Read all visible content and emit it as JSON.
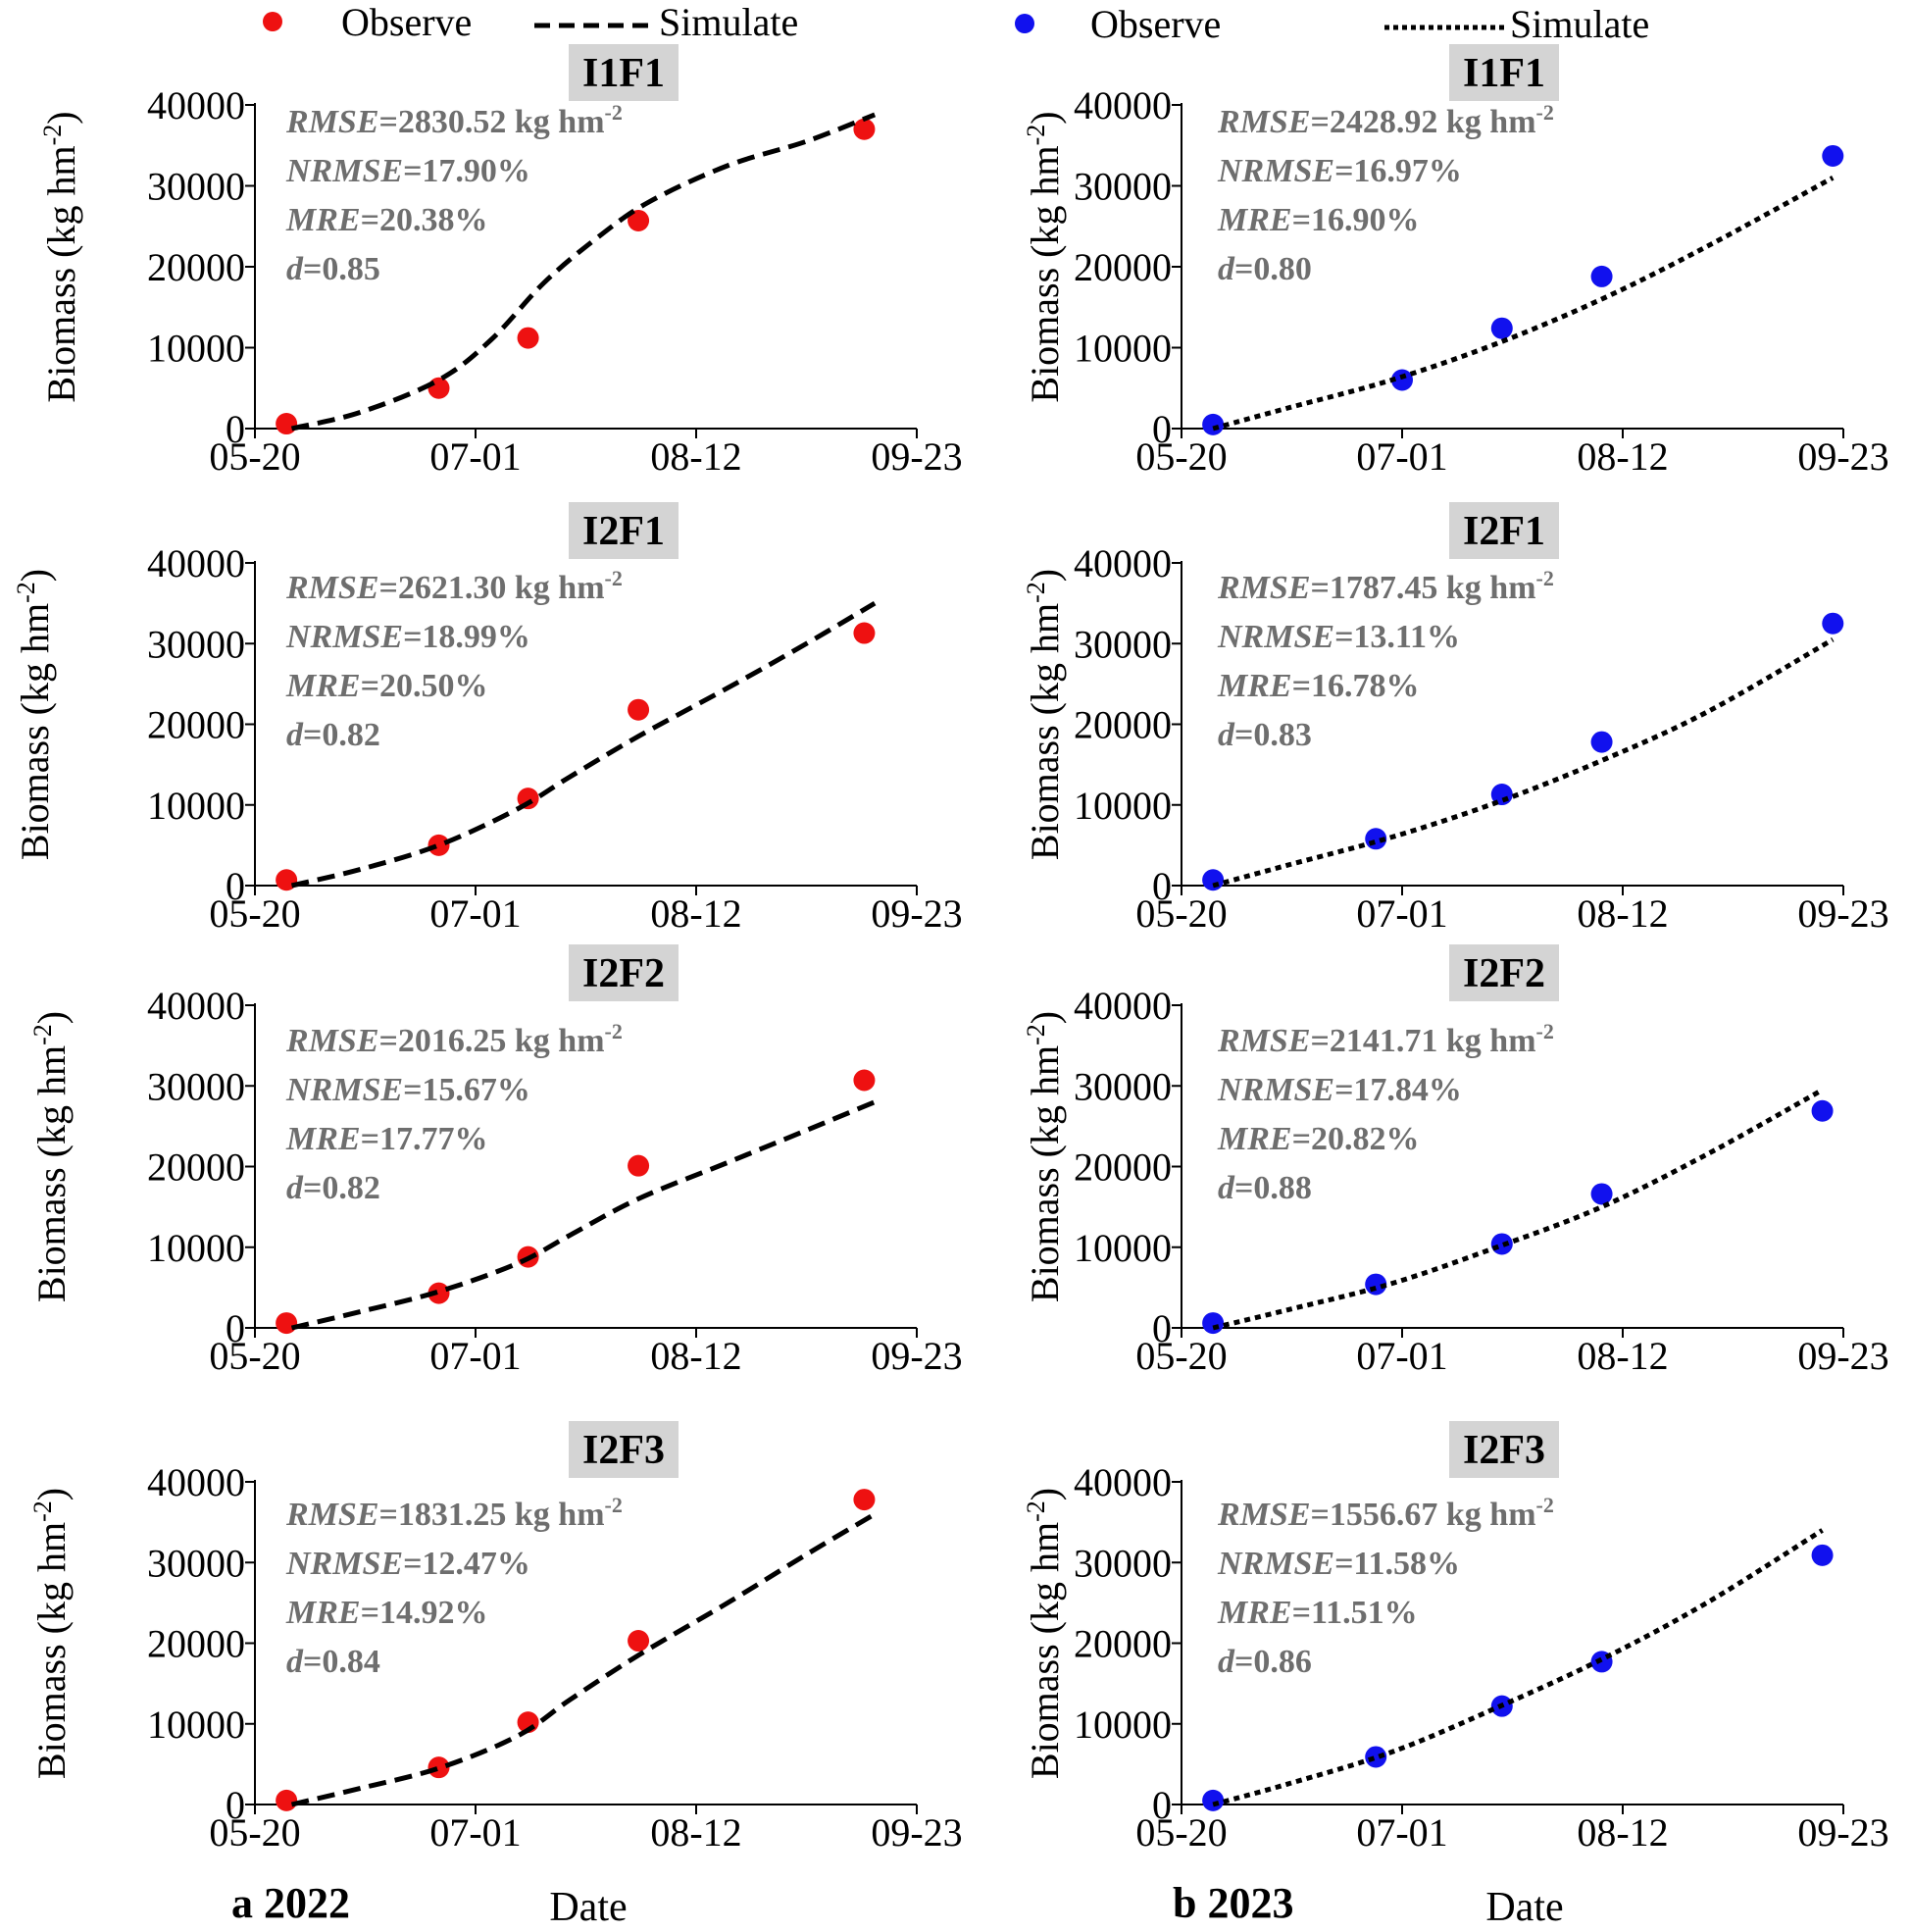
{
  "legend": [
    {
      "label": "Observe",
      "kind": "point",
      "color": "#ee1111"
    },
    {
      "label": "Simulate",
      "kind": "dash",
      "color": "#000000"
    },
    {
      "label": "Observe",
      "kind": "point",
      "color": "#1111ee"
    },
    {
      "label": "Simulate",
      "kind": "dot",
      "color": "#000000"
    }
  ],
  "column_labels": [
    {
      "letter": "a",
      "year": "2022"
    },
    {
      "letter": "b",
      "year": "2023"
    }
  ],
  "xlabel": "Date",
  "ylabel_main": "Biomass (kg hm",
  "ylabel_exp": "-2",
  "ylabel_close": ")",
  "stat_unit": " kg hm",
  "stat_unit_exp": "-2",
  "colors": {
    "observe_2022": "#ee1111",
    "observe_2023": "#1111ee",
    "title_box": "#d4d4d4",
    "stats_text": "#6e6e6e"
  },
  "chart_data": [
    {
      "type": "line",
      "treatment": "I1F1",
      "year": "2022",
      "x_ticks": [
        "05-20",
        "07-01",
        "08-12",
        "09-23"
      ],
      "x_range": [
        0,
        126
      ],
      "y_ticks": [
        0,
        10000,
        20000,
        30000,
        40000
      ],
      "ylim": [
        0,
        40000
      ],
      "series": [
        {
          "name": "Observe",
          "style": "point",
          "x": [
            6,
            35,
            52,
            73,
            116
          ],
          "y": [
            600,
            5000,
            11200,
            25700,
            37000
          ]
        },
        {
          "name": "Simulate",
          "style": "dash",
          "x": [
            7,
            20,
            35,
            45,
            55,
            65,
            75,
            90,
            105,
            118
          ],
          "y": [
            0,
            2000,
            6000,
            11000,
            18000,
            23500,
            28000,
            32500,
            35500,
            38800
          ]
        }
      ],
      "stats": {
        "rmse": "2830.52",
        "nrmse": "17.90%",
        "mre": "20.38%",
        "d": "0.85"
      }
    },
    {
      "type": "line",
      "treatment": "I1F1",
      "year": "2023",
      "x_ticks": [
        "05-20",
        "07-01",
        "08-12",
        "09-23"
      ],
      "x_range": [
        0,
        126
      ],
      "y_ticks": [
        0,
        10000,
        20000,
        30000,
        40000
      ],
      "ylim": [
        0,
        40000
      ],
      "series": [
        {
          "name": "Observe",
          "style": "point",
          "x": [
            6,
            42,
            61,
            80,
            124
          ],
          "y": [
            500,
            6000,
            12400,
            18800,
            33700
          ]
        },
        {
          "name": "Simulate",
          "style": "dot",
          "x": [
            6,
            20,
            40,
            60,
            80,
            100,
            124
          ],
          "y": [
            0,
            2500,
            6000,
            10500,
            16000,
            22500,
            31000
          ]
        }
      ],
      "stats": {
        "rmse": "2428.92",
        "nrmse": "16.97%",
        "mre": "16.90%",
        "d": "0.80"
      }
    },
    {
      "type": "line",
      "treatment": "I2F1",
      "year": "2022",
      "x_ticks": [
        "05-20",
        "07-01",
        "08-12",
        "09-23"
      ],
      "x_range": [
        0,
        126
      ],
      "y_ticks": [
        0,
        10000,
        20000,
        30000,
        40000
      ],
      "ylim": [
        0,
        40000
      ],
      "series": [
        {
          "name": "Observe",
          "style": "point",
          "x": [
            6,
            35,
            52,
            73,
            116
          ],
          "y": [
            700,
            5000,
            10800,
            21800,
            31300
          ]
        },
        {
          "name": "Simulate",
          "style": "dash",
          "x": [
            7,
            20,
            35,
            50,
            60,
            73,
            90,
            105,
            118
          ],
          "y": [
            0,
            2000,
            5000,
            9500,
            13500,
            18500,
            24500,
            30000,
            35000
          ]
        }
      ],
      "stats": {
        "rmse": "2621.30",
        "nrmse": "18.99%",
        "mre": "20.50%",
        "d": "0.82"
      }
    },
    {
      "type": "line",
      "treatment": "I2F1",
      "year": "2023",
      "x_ticks": [
        "05-20",
        "07-01",
        "08-12",
        "09-23"
      ],
      "x_range": [
        0,
        126
      ],
      "y_ticks": [
        0,
        10000,
        20000,
        30000,
        40000
      ],
      "ylim": [
        0,
        40000
      ],
      "series": [
        {
          "name": "Observe",
          "style": "point",
          "x": [
            6,
            37,
            61,
            80,
            124
          ],
          "y": [
            700,
            5800,
            11300,
            17800,
            32500
          ]
        },
        {
          "name": "Simulate",
          "style": "dot",
          "x": [
            6,
            20,
            40,
            60,
            80,
            100,
            124
          ],
          "y": [
            0,
            2500,
            6000,
            10300,
            15500,
            21500,
            30500
          ]
        }
      ],
      "stats": {
        "rmse": "1787.45",
        "nrmse": "13.11%",
        "mre": "16.78%",
        "d": "0.83"
      }
    },
    {
      "type": "line",
      "treatment": "I2F2",
      "year": "2022",
      "x_ticks": [
        "05-20",
        "07-01",
        "08-12",
        "09-23"
      ],
      "x_range": [
        0,
        126
      ],
      "y_ticks": [
        0,
        10000,
        20000,
        30000,
        40000
      ],
      "ylim": [
        0,
        40000
      ],
      "series": [
        {
          "name": "Observe",
          "style": "point",
          "x": [
            6,
            35,
            52,
            73,
            116
          ],
          "y": [
            600,
            4300,
            8800,
            20100,
            30700
          ]
        },
        {
          "name": "Simulate",
          "style": "dash",
          "x": [
            7,
            20,
            35,
            50,
            60,
            73,
            90,
            105,
            118
          ],
          "y": [
            0,
            2000,
            4500,
            8000,
            11500,
            16000,
            20500,
            24500,
            28000
          ]
        }
      ],
      "stats": {
        "rmse": "2016.25",
        "nrmse": "15.67%",
        "mre": "17.77%",
        "d": "0.82"
      }
    },
    {
      "type": "line",
      "treatment": "I2F2",
      "year": "2023",
      "x_ticks": [
        "05-20",
        "07-01",
        "08-12",
        "09-23"
      ],
      "x_range": [
        0,
        126
      ],
      "y_ticks": [
        0,
        10000,
        20000,
        30000,
        40000
      ],
      "ylim": [
        0,
        40000
      ],
      "series": [
        {
          "name": "Observe",
          "style": "point",
          "x": [
            6,
            37,
            61,
            80,
            122
          ],
          "y": [
            600,
            5400,
            10400,
            16600,
            26900
          ]
        },
        {
          "name": "Simulate",
          "style": "dot",
          "x": [
            6,
            20,
            40,
            60,
            80,
            100,
            122
          ],
          "y": [
            0,
            2200,
            5500,
            10000,
            15000,
            21500,
            29500
          ]
        }
      ],
      "stats": {
        "rmse": "2141.71",
        "nrmse": "17.84%",
        "mre": "20.82%",
        "d": "0.88"
      }
    },
    {
      "type": "line",
      "treatment": "I2F3",
      "year": "2022",
      "x_ticks": [
        "05-20",
        "07-01",
        "08-12",
        "09-23"
      ],
      "x_range": [
        0,
        126
      ],
      "y_ticks": [
        0,
        10000,
        20000,
        30000,
        40000
      ],
      "ylim": [
        0,
        40000
      ],
      "series": [
        {
          "name": "Observe",
          "style": "point",
          "x": [
            6,
            35,
            52,
            73,
            116
          ],
          "y": [
            500,
            4600,
            10200,
            20300,
            37800
          ]
        },
        {
          "name": "Simulate",
          "style": "dash",
          "x": [
            7,
            20,
            35,
            50,
            60,
            73,
            90,
            105,
            118
          ],
          "y": [
            0,
            2000,
            4500,
            8500,
            13000,
            18500,
            25000,
            31000,
            36000
          ]
        }
      ],
      "stats": {
        "rmse": "1831.25",
        "nrmse": "12.47%",
        "mre": "14.92%",
        "d": "0.84"
      }
    },
    {
      "type": "line",
      "treatment": "I2F3",
      "year": "2023",
      "x_ticks": [
        "05-20",
        "07-01",
        "08-12",
        "09-23"
      ],
      "x_range": [
        0,
        126
      ],
      "y_ticks": [
        0,
        10000,
        20000,
        30000,
        40000
      ],
      "ylim": [
        0,
        40000
      ],
      "series": [
        {
          "name": "Observe",
          "style": "point",
          "x": [
            6,
            37,
            61,
            80,
            122
          ],
          "y": [
            500,
            5900,
            12200,
            17700,
            30900
          ]
        },
        {
          "name": "Simulate",
          "style": "dot",
          "x": [
            6,
            20,
            40,
            60,
            80,
            100,
            122
          ],
          "y": [
            0,
            2500,
            6500,
            12000,
            18000,
            25000,
            34000
          ]
        }
      ],
      "stats": {
        "rmse": "1556.67",
        "nrmse": "11.58%",
        "mre": "11.51%",
        "d": "0.86"
      }
    }
  ]
}
